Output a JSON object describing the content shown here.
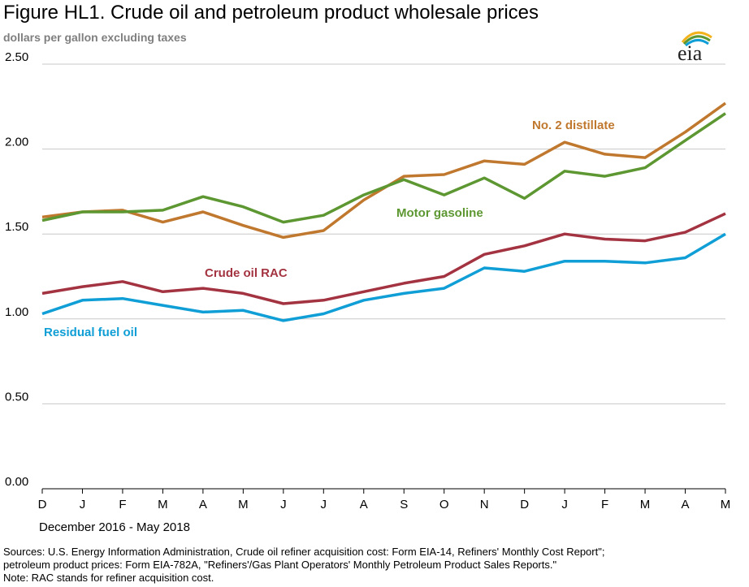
{
  "title": "Figure HL1. Crude oil and petroleum product wholesale prices",
  "subtitle": "dollars per gallon excluding taxes",
  "logo_text": "eia",
  "period_label": "December 2016 - May 2018",
  "sources_line1": "Sources:  U.S. Energy Information Administration, Crude oil refiner acquisition cost:  Form EIA-14, Refiners' Monthly Cost Report\";",
  "sources_line2": "petroleum product prices:  Form EIA-782A, \"Refiners'/Gas Plant Operators' Monthly Petroleum Product Sales Reports.\"",
  "note": "Note:  RAC stands for refiner acquisition cost.",
  "chart_data": {
    "type": "line",
    "x": [
      "D",
      "J",
      "F",
      "M",
      "A",
      "M",
      "J",
      "J",
      "A",
      "S",
      "O",
      "N",
      "D",
      "J",
      "F",
      "M",
      "A",
      "M"
    ],
    "ylim": [
      0,
      2.5
    ],
    "yticks": [
      "0.00",
      "0.50",
      "1.00",
      "1.50",
      "2.00",
      "2.50"
    ],
    "grid": true,
    "series": [
      {
        "name": "No. 2 distillate",
        "color": "#c0782e",
        "values": [
          1.6,
          1.63,
          1.64,
          1.57,
          1.63,
          1.55,
          1.48,
          1.52,
          1.7,
          1.84,
          1.85,
          1.93,
          1.91,
          2.04,
          1.97,
          1.95,
          2.1,
          2.27
        ]
      },
      {
        "name": "Motor gasoline",
        "color": "#5d9732",
        "values": [
          1.58,
          1.63,
          1.63,
          1.64,
          1.72,
          1.66,
          1.57,
          1.61,
          1.73,
          1.82,
          1.73,
          1.83,
          1.71,
          1.87,
          1.84,
          1.89,
          2.05,
          2.21
        ]
      },
      {
        "name": "Crude oil RAC",
        "color": "#a33340",
        "values": [
          1.15,
          1.19,
          1.22,
          1.16,
          1.18,
          1.15,
          1.09,
          1.11,
          1.16,
          1.21,
          1.25,
          1.38,
          1.43,
          1.5,
          1.47,
          1.46,
          1.51,
          1.62
        ]
      },
      {
        "name": "Residual fuel oil",
        "color": "#0f9ed5",
        "values": [
          1.03,
          1.11,
          1.12,
          1.08,
          1.04,
          1.05,
          0.99,
          1.03,
          1.11,
          1.15,
          1.18,
          1.3,
          1.28,
          1.34,
          1.34,
          1.33,
          1.36,
          1.5
        ]
      }
    ]
  }
}
